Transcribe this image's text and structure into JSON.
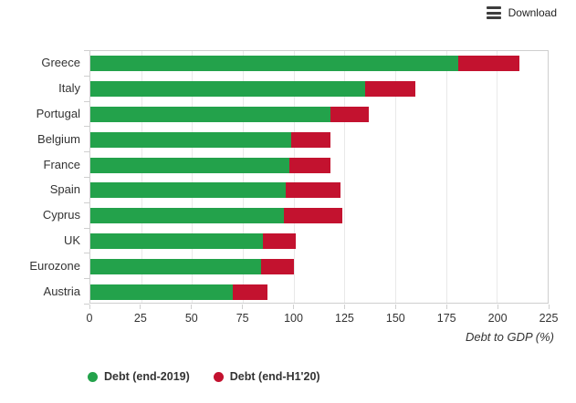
{
  "toolbar": {
    "download_label": "Download"
  },
  "chart_data": {
    "type": "bar",
    "orientation": "horizontal",
    "stacked": true,
    "title": "",
    "xlabel": "Debt to GDP (%)",
    "ylabel": "",
    "xlim": [
      0,
      225
    ],
    "xticks": [
      0,
      25,
      50,
      75,
      100,
      125,
      150,
      175,
      200,
      225
    ],
    "grid": true,
    "legend_position": "bottom",
    "categories": [
      "Greece",
      "Italy",
      "Portugal",
      "Belgium",
      "France",
      "Spain",
      "Cyprus",
      "UK",
      "Eurozone",
      "Austria"
    ],
    "series": [
      {
        "name": "Debt (end-2019)",
        "color": "#23a24b",
        "values": [
          181,
          135,
          118,
          99,
          98,
          96,
          95,
          85,
          84,
          70
        ]
      },
      {
        "name": "Debt (end-H1'20)",
        "color": "#c3122f",
        "values": [
          211,
          160,
          137,
          118,
          118,
          123,
          124,
          101,
          100,
          87
        ],
        "encoding": "bar total; red segment spans from end-2019 value to this value"
      }
    ]
  }
}
